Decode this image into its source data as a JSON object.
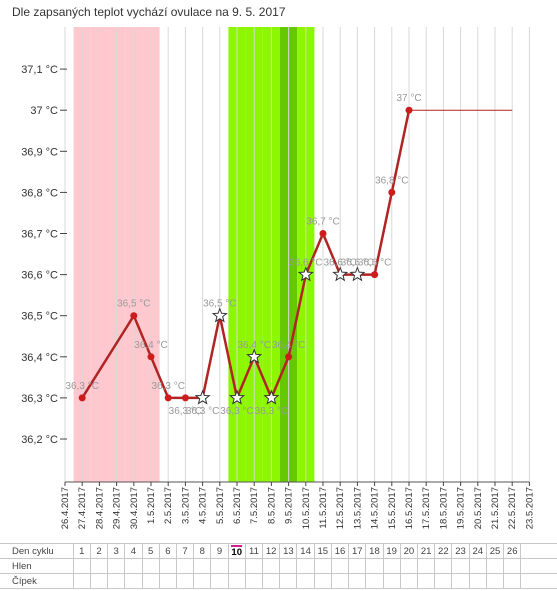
{
  "heading": "Dle zapsaných teplot vychází ovulace na 9. 5. 2017",
  "colors": {
    "period": "#ffc8cf",
    "fertile": "#8cf700",
    "ovulation": "#66c800",
    "line": "#b02424",
    "point": "#cc1c1c",
    "grid": "#d8d8d8",
    "label": "#999999"
  },
  "chart_data": {
    "type": "line",
    "title": "",
    "xlabel": "",
    "ylabel": "",
    "x_dates": [
      "26.4.2017",
      "27.4.2017",
      "28.4.2017",
      "29.4.2017",
      "30.4.2017",
      "1.5.2017",
      "2.5.2017",
      "3.5.2017",
      "4.5.2017",
      "5.5.2017",
      "6.5.2017",
      "7.5.2017",
      "8.5.2017",
      "9.5.2017",
      "10.5.2017",
      "11.5.2017",
      "12.5.2017",
      "13.5.2017",
      "14.5.2017",
      "15.5.2017",
      "16.5.2017",
      "17.5.2017",
      "18.5.2017",
      "19.5.2017",
      "20.5.2017",
      "21.5.2017",
      "22.5.2017",
      "23.5.2017"
    ],
    "y_ticks": [
      "36,2 °C",
      "36,3 °C",
      "36,4 °C",
      "36,5 °C",
      "36,6 °C",
      "36,7 °C",
      "36,8 °C",
      "36,9 °C",
      "37 °C",
      "37,1 °C"
    ],
    "y_tick_values": [
      36.2,
      36.3,
      36.4,
      36.5,
      36.6,
      36.7,
      36.8,
      36.9,
      37.0,
      37.1
    ],
    "ylim": [
      36.1,
      37.2
    ],
    "period_days": [
      "27.4.2017",
      "28.4.2017",
      "29.4.2017",
      "30.4.2017",
      "1.5.2017"
    ],
    "fertile_days": [
      "6.5.2017",
      "7.5.2017",
      "8.5.2017",
      "9.5.2017",
      "10.5.2017"
    ],
    "ovulation_day": "9.5.2017",
    "points": [
      {
        "date": "27.4.2017",
        "value": 36.3,
        "label": "36,3 °C",
        "marker": "dot"
      },
      {
        "date": "30.4.2017",
        "value": 36.5,
        "label": "36,5 °C",
        "marker": "dot"
      },
      {
        "date": "1.5.2017",
        "value": 36.4,
        "label": "36,4 °C",
        "marker": "dot"
      },
      {
        "date": "2.5.2017",
        "value": 36.3,
        "label": "36,3 °C",
        "marker": "dot"
      },
      {
        "date": "3.5.2017",
        "value": 36.3,
        "label": "36,3 °C",
        "marker": "dot"
      },
      {
        "date": "4.5.2017",
        "value": 36.3,
        "label": "36,3 °C",
        "marker": "star"
      },
      {
        "date": "5.5.2017",
        "value": 36.5,
        "label": "36,5 °C",
        "marker": "star"
      },
      {
        "date": "6.5.2017",
        "value": 36.3,
        "label": "36,3 °C",
        "marker": "star"
      },
      {
        "date": "7.5.2017",
        "value": 36.4,
        "label": "36,4 °C",
        "marker": "star"
      },
      {
        "date": "8.5.2017",
        "value": 36.3,
        "label": "36,3 °C",
        "marker": "star"
      },
      {
        "date": "9.5.2017",
        "value": 36.4,
        "label": "36,4 °C",
        "marker": "dot"
      },
      {
        "date": "10.5.2017",
        "value": 36.6,
        "label": "36,6 °C",
        "marker": "star"
      },
      {
        "date": "11.5.2017",
        "value": 36.7,
        "label": "36,7 °C",
        "marker": "dot"
      },
      {
        "date": "12.5.2017",
        "value": 36.6,
        "label": "36,6 °C",
        "marker": "star"
      },
      {
        "date": "13.5.2017",
        "value": 36.6,
        "label": "36,6 °C",
        "marker": "star"
      },
      {
        "date": "14.5.2017",
        "value": 36.6,
        "label": "36,6 °C",
        "marker": "dot"
      },
      {
        "date": "15.5.2017",
        "value": 36.8,
        "label": "36,8 °C",
        "marker": "dot"
      },
      {
        "date": "16.5.2017",
        "value": 37.0,
        "label": "37 °C",
        "marker": "dot"
      }
    ],
    "extension": {
      "from": "16.5.2017",
      "to": "22.5.2017",
      "value": 37.0
    },
    "legend": "none",
    "grid": true
  },
  "cycle_table": {
    "rows": [
      {
        "label": "Den cyklu",
        "cells": [
          "1",
          "2",
          "3",
          "4",
          "5",
          "6",
          "7",
          "8",
          "9",
          "10",
          "11",
          "12",
          "13",
          "14",
          "15",
          "16",
          "17",
          "18",
          "19",
          "20",
          "21",
          "22",
          "23",
          "24",
          "25",
          "26"
        ],
        "today": "10"
      },
      {
        "label": "Hlen",
        "cells": []
      },
      {
        "label": "Čípek",
        "cells": []
      }
    ]
  }
}
